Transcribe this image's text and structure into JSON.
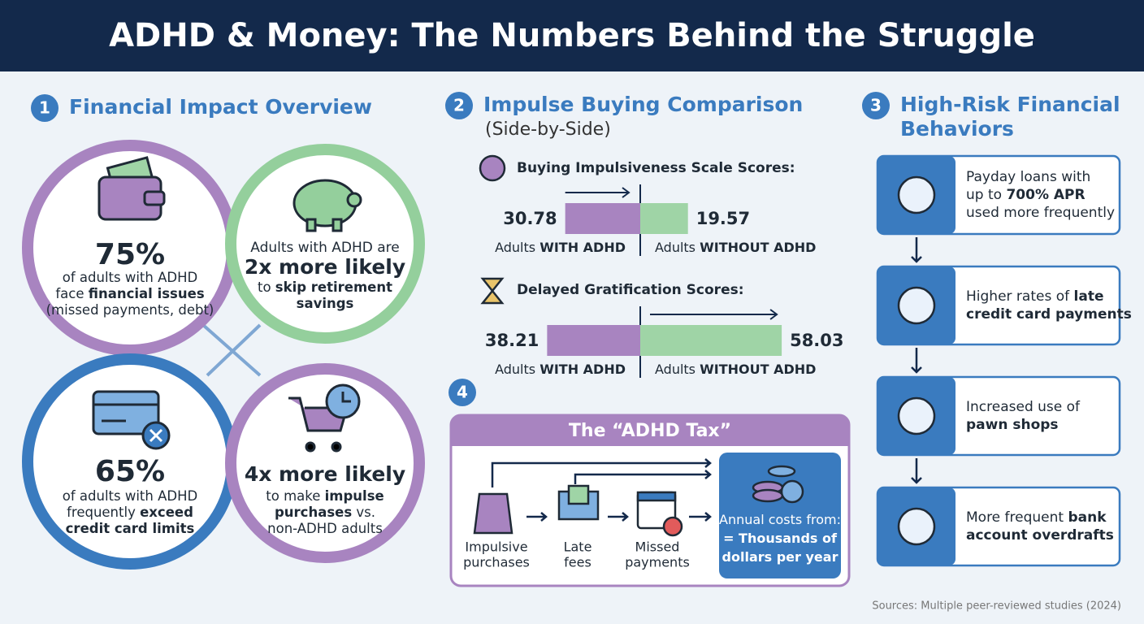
{
  "header": {
    "title": "ADHD & Money: The Numbers Behind the Struggle"
  },
  "section1": {
    "number": "1",
    "title": "Financial Impact Overview",
    "circles": [
      {
        "stat": "75%",
        "lines": [
          [
            {
              "t": "of adults with ADHD"
            }
          ],
          [
            {
              "t": "face "
            },
            {
              "t": "financial issues",
              "b": true
            }
          ],
          [
            {
              "t": "(missed payments, debt)"
            }
          ]
        ]
      },
      {
        "before": [
          [
            {
              "t": "Adults with ADHD are"
            }
          ]
        ],
        "stat": "2x more likely",
        "lines": [
          [
            {
              "t": "to "
            },
            {
              "t": "skip retirement",
              "b": true
            }
          ],
          [
            {
              "t": "savings",
              "b": true
            }
          ]
        ]
      },
      {
        "stat": "65%",
        "lines": [
          [
            {
              "t": "of adults with ADHD"
            }
          ],
          [
            {
              "t": "frequently "
            },
            {
              "t": "exceed",
              "b": true
            }
          ],
          [
            {
              "t": "credit card limits",
              "b": true
            }
          ]
        ]
      },
      {
        "stat": "4x more likely",
        "lines": [
          [
            {
              "t": "to make "
            },
            {
              "t": "impulse",
              "b": true
            }
          ],
          [
            {
              "t": "purchases",
              "b": true
            },
            {
              "t": " vs."
            }
          ],
          [
            {
              "t": "non-ADHD adults"
            }
          ]
        ]
      }
    ]
  },
  "section2": {
    "number": "2",
    "title": "Impulse Buying Comparison",
    "subtitle": "(Side-by-Side)",
    "charts": [
      {
        "title": "Buying Impulsiveness Scale Scores:",
        "groups": [
          {
            "value": 30.78,
            "color": "#a884c0",
            "label": [
              {
                "t": "Adults "
              },
              {
                "t": "WITH ADHD",
                "b": true
              }
            ]
          },
          {
            "value": 19.57,
            "color": "#9fd4a6",
            "label": [
              {
                "t": "Adults "
              },
              {
                "t": "WITHOUT ADHD",
                "b": true
              }
            ]
          }
        ]
      },
      {
        "title": "Delayed Gratification Scores:",
        "groups": [
          {
            "value": 38.21,
            "color": "#a884c0",
            "label": [
              {
                "t": "Adults "
              },
              {
                "t": "WITH ADHD",
                "b": true
              }
            ]
          },
          {
            "value": 58.03,
            "color": "#9fd4a6",
            "label": [
              {
                "t": "Adults "
              },
              {
                "t": "WITHOUT ADHD",
                "b": true
              }
            ]
          }
        ]
      }
    ]
  },
  "section4": {
    "number": "4",
    "title": "The “ADHD Tax”",
    "steps": [
      [
        "Impulsive",
        "purchases"
      ],
      [
        "Late",
        "fees"
      ],
      [
        "Missed",
        "payments"
      ]
    ],
    "result": [
      [
        {
          "t": "Annual costs from:"
        }
      ],
      [
        {
          "t": "= Thousands of",
          "b": true
        }
      ],
      [
        {
          "t": "dollars per year",
          "b": true
        }
      ]
    ]
  },
  "section3": {
    "number": "3",
    "title": [
      "High-Risk Financial",
      "Behaviors"
    ],
    "items": [
      [
        [
          {
            "t": "Payday loans with"
          }
        ],
        [
          {
            "t": "up to "
          },
          {
            "t": "700% APR",
            "b": true
          }
        ],
        [
          {
            "t": "used more frequently"
          }
        ]
      ],
      [
        [
          {
            "t": "Higher rates of "
          },
          {
            "t": "late",
            "b": true
          }
        ],
        [
          {
            "t": "credit card payments",
            "b": true
          }
        ]
      ],
      [
        [
          {
            "t": "Increased use of"
          }
        ],
        [
          {
            "t": "pawn shops",
            "b": true
          }
        ]
      ],
      [
        [
          {
            "t": "More frequent "
          },
          {
            "t": "bank",
            "b": true
          }
        ],
        [
          {
            "t": "account overdrafts",
            "b": true
          }
        ]
      ]
    ]
  },
  "footer": {
    "source": "Sources: Multiple peer-reviewed studies (2024)"
  }
}
